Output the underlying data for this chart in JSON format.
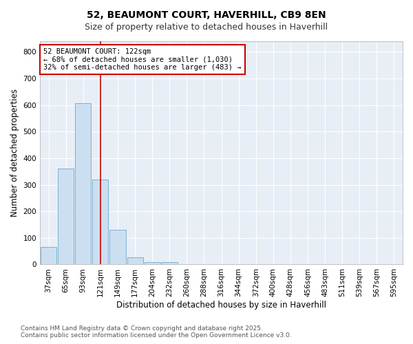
{
  "title": "52, BEAUMONT COURT, HAVERHILL, CB9 8EN",
  "subtitle": "Size of property relative to detached houses in Haverhill",
  "xlabel": "Distribution of detached houses by size in Haverhill",
  "ylabel": "Number of detached properties",
  "categories": [
    "37sqm",
    "65sqm",
    "93sqm",
    "121sqm",
    "149sqm",
    "177sqm",
    "204sqm",
    "232sqm",
    "260sqm",
    "288sqm",
    "316sqm",
    "344sqm",
    "372sqm",
    "400sqm",
    "428sqm",
    "456sqm",
    "483sqm",
    "511sqm",
    "539sqm",
    "567sqm",
    "595sqm"
  ],
  "values": [
    65,
    360,
    608,
    320,
    130,
    28,
    8,
    8,
    0,
    0,
    0,
    0,
    0,
    0,
    0,
    0,
    0,
    0,
    0,
    0,
    0
  ],
  "bar_color": "#ccdff0",
  "bar_edge_color": "#7ab0d4",
  "vline_x_index": 3,
  "vline_color": "#cc0000",
  "annotation_text": "52 BEAUMONT COURT: 122sqm\n← 68% of detached houses are smaller (1,030)\n32% of semi-detached houses are larger (483) →",
  "annotation_box_color": "#cc0000",
  "ylim": [
    0,
    840
  ],
  "yticks": [
    0,
    100,
    200,
    300,
    400,
    500,
    600,
    700,
    800
  ],
  "plot_bg_color": "#e8eef5",
  "fig_bg_color": "#ffffff",
  "grid_color": "#ffffff",
  "footer_line1": "Contains HM Land Registry data © Crown copyright and database right 2025.",
  "footer_line2": "Contains public sector information licensed under the Open Government Licence v3.0.",
  "title_fontsize": 10,
  "subtitle_fontsize": 9,
  "axis_label_fontsize": 8.5,
  "tick_fontsize": 7.5,
  "annotation_fontsize": 7.5,
  "footer_fontsize": 6.5
}
